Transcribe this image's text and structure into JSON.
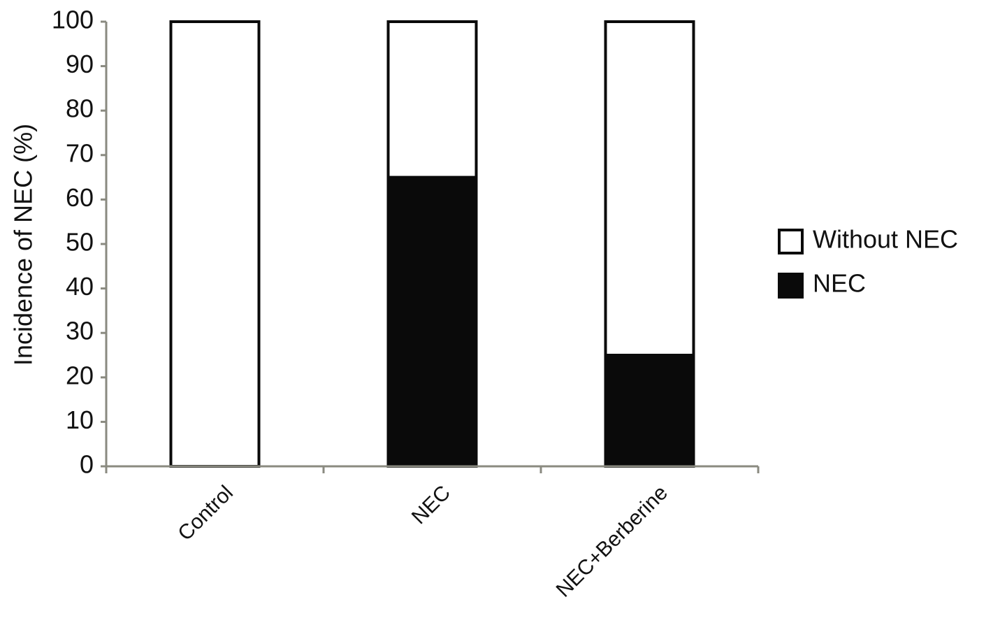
{
  "chart_data": {
    "type": "stacked-bar",
    "y_label": "Incidence of NEC (%)",
    "categories": [
      "Control",
      "NEC",
      "NEC+Berberine"
    ],
    "series": [
      {
        "name": "NEC",
        "color": "#0a0a0a",
        "values": [
          0,
          65,
          25
        ]
      },
      {
        "name": "Without NEC",
        "color": "#ffffff",
        "values": [
          100,
          35,
          75
        ]
      }
    ],
    "ylim": [
      0,
      100
    ],
    "yticks": [
      0,
      10,
      20,
      30,
      40,
      50,
      60,
      70,
      80,
      90,
      100
    ],
    "legend": "right"
  }
}
